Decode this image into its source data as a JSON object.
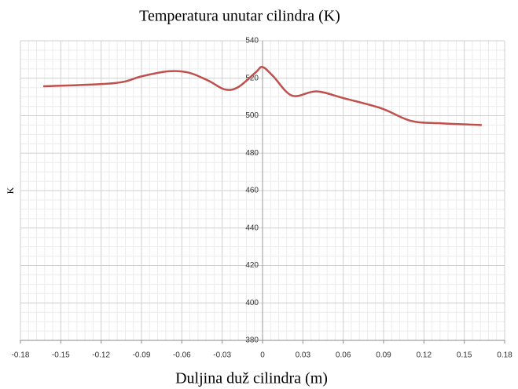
{
  "chart_data": {
    "type": "line",
    "title": "Temperatura unutar cilindra (K)",
    "x_label": "Duljina duž cilindra (m)",
    "y_label": "K",
    "x": [
      -0.163,
      -0.11,
      -0.09,
      -0.07,
      -0.055,
      -0.04,
      -0.028,
      -0.018,
      -0.005,
      0,
      0.008,
      0.022,
      0.04,
      0.06,
      0.088,
      0.11,
      0.13,
      0.163
    ],
    "series": [
      {
        "color": "#c0504d",
        "values": [
          515.7,
          517.4,
          521,
          523.7,
          523,
          518.6,
          514,
          515.3,
          523.2,
          526,
          521,
          510.7,
          513,
          509.4,
          504,
          497.3,
          496,
          495
        ]
      }
    ],
    "xlim": [
      -0.18,
      0.18
    ],
    "xticks": [
      -0.18,
      -0.15,
      -0.12,
      -0.09,
      -0.06,
      -0.03,
      0,
      0.03,
      0.06,
      0.09,
      0.12,
      0.15,
      0.18
    ],
    "ylim": [
      380,
      540
    ],
    "yticks": [
      380,
      400,
      420,
      440,
      460,
      480,
      500,
      520,
      540
    ],
    "grid": true,
    "minor_grid": {
      "x": 5,
      "y": 4
    }
  }
}
